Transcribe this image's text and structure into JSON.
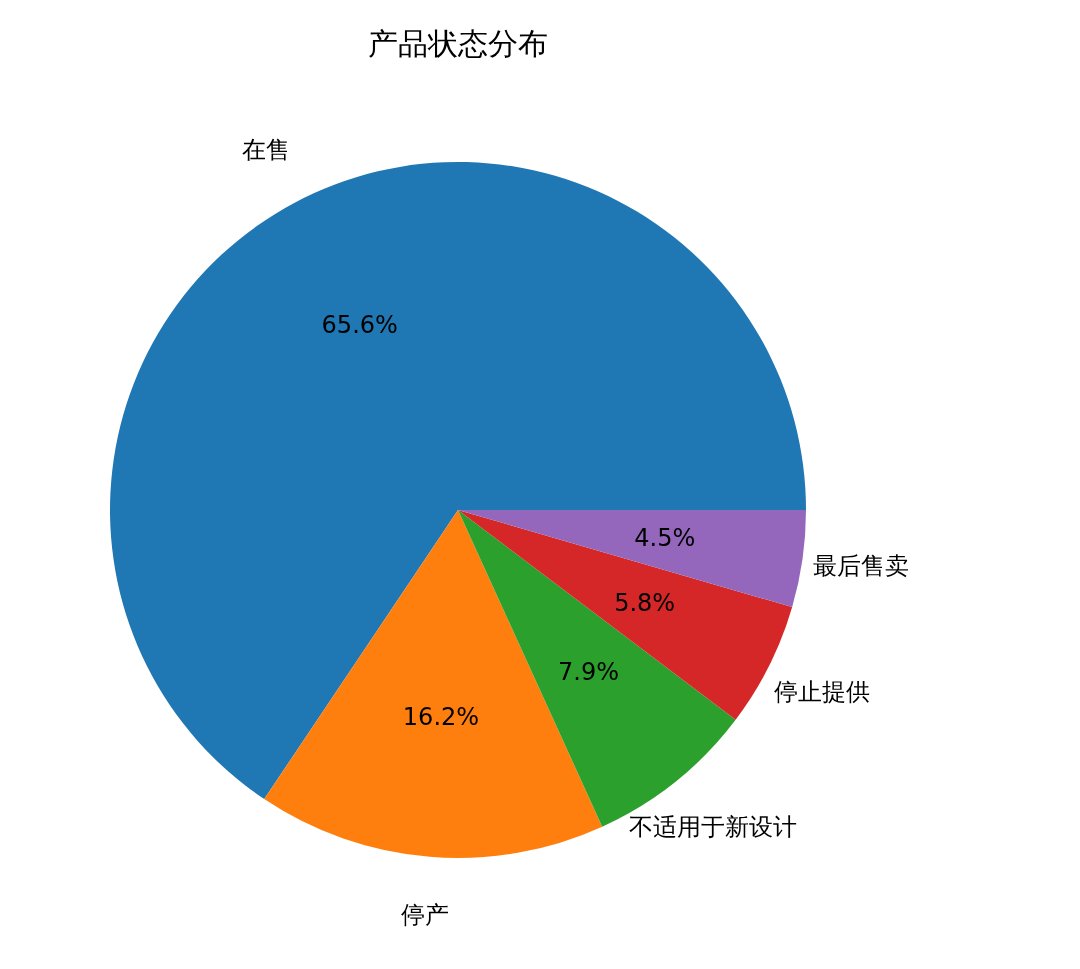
{
  "chart_data": {
    "type": "pie",
    "title": "产品状态分布",
    "categories": [
      "在售",
      "停产",
      "不适用于新设计",
      "停止提供",
      "最后售卖"
    ],
    "values": [
      65.6,
      16.2,
      7.9,
      5.8,
      4.5
    ],
    "value_labels": [
      "65.6%",
      "16.2%",
      "7.9%",
      "5.8%",
      "4.5%"
    ],
    "colors": [
      "#1f77b4",
      "#ff7f0e",
      "#2ca02c",
      "#d62728",
      "#9467bd"
    ],
    "legend": false
  }
}
